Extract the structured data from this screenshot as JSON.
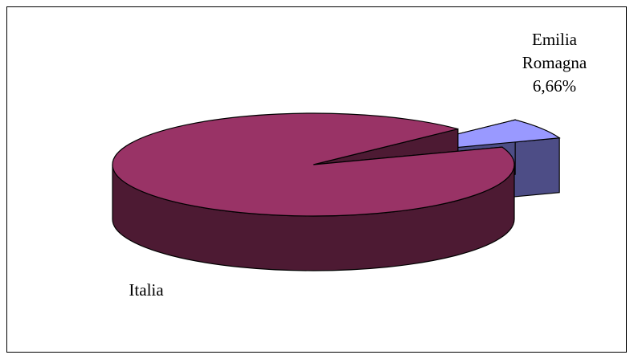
{
  "chart_data": {
    "type": "pie",
    "style": "3d-exploded",
    "slices": [
      {
        "label_lines": [
          "Emilia",
          "Romagna",
          "6,66%"
        ],
        "value": 6.66,
        "color_top": "#9999ff",
        "color_side": "#4d4d86"
      },
      {
        "label_lines": [
          "Italia"
        ],
        "value": 93.34,
        "color_top": "#993366",
        "color_side": "#4d1a33"
      }
    ],
    "legend": "none"
  }
}
